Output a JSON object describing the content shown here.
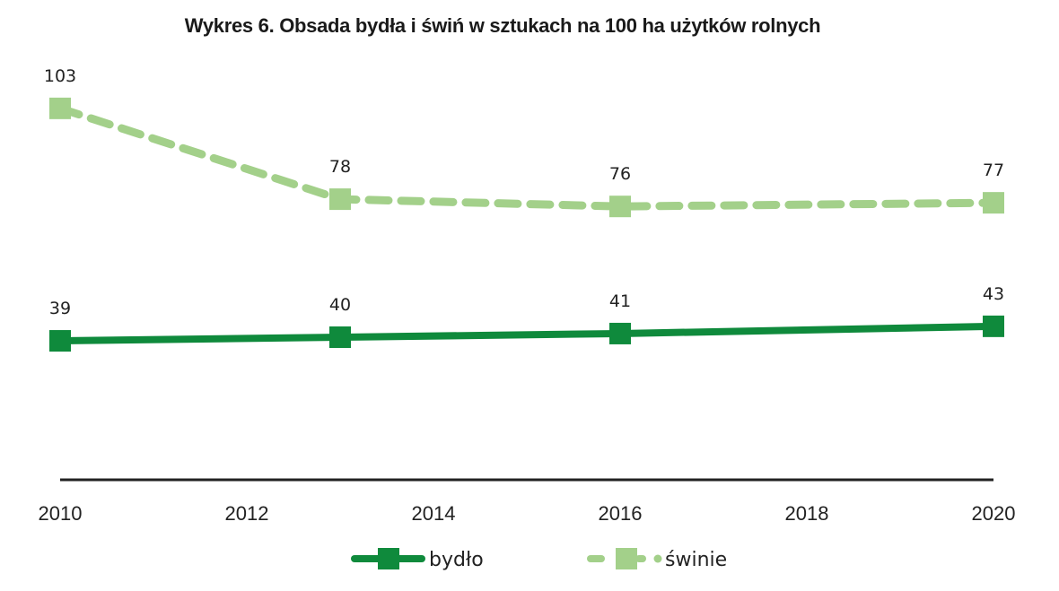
{
  "chart_data": {
    "type": "line",
    "title": "Wykres 6. Obsada bydła i świń w sztukach na 100 ha użytków rolnych",
    "xlabel": "",
    "ylabel": "",
    "x_ticks": [
      "2010",
      "2012",
      "2014",
      "2016",
      "2018",
      "2020"
    ],
    "xlim": [
      2010,
      2020
    ],
    "ylim": [
      0,
      110
    ],
    "grid": false,
    "legend_position": "bottom",
    "series": [
      {
        "name": "bydło",
        "color": "#0f8a3c",
        "style": "solid",
        "marker": "square",
        "points": [
          {
            "x": 2010,
            "y": 39,
            "label": "39"
          },
          {
            "x": 2013,
            "y": 40,
            "label": "40"
          },
          {
            "x": 2016,
            "y": 41,
            "label": "41"
          },
          {
            "x": 2020,
            "y": 43,
            "label": "43"
          }
        ]
      },
      {
        "name": "świnie",
        "color": "#a3d08a",
        "style": "dashed",
        "marker": "square",
        "points": [
          {
            "x": 2010,
            "y": 103,
            "label": "103"
          },
          {
            "x": 2013,
            "y": 78,
            "label": "78"
          },
          {
            "x": 2016,
            "y": 76,
            "label": "76"
          },
          {
            "x": 2020,
            "y": 77,
            "label": "77"
          }
        ]
      }
    ]
  }
}
